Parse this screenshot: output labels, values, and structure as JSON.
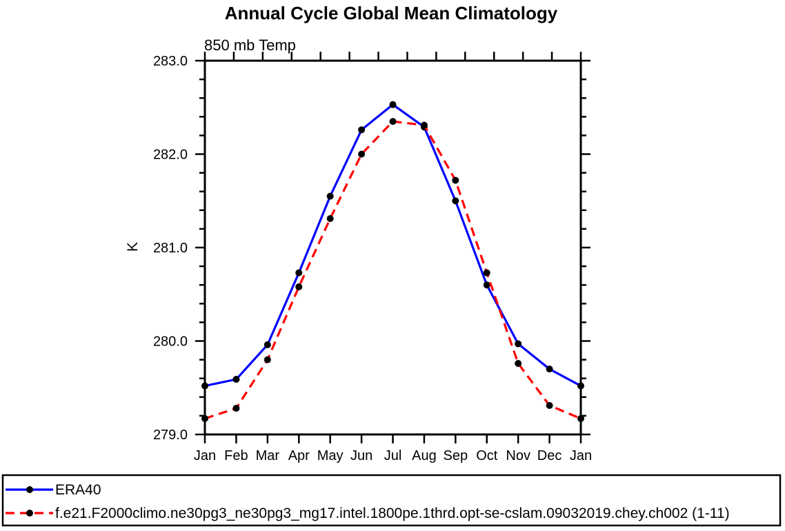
{
  "page": {
    "background": "#ffffff",
    "foreground": "#000000"
  },
  "chart_data": {
    "type": "line",
    "title": "Annual Cycle Global Mean Climatology",
    "subtitle": "850 mb Temp",
    "xlabel": "",
    "ylabel": "K",
    "categories": [
      "Jan",
      "Feb",
      "Mar",
      "Apr",
      "May",
      "Jun",
      "Jul",
      "Aug",
      "Sep",
      "Oct",
      "Nov",
      "Dec",
      "Jan"
    ],
    "ylim": [
      279.0,
      283.0
    ],
    "ytick_labels": [
      "279.0",
      "280.0",
      "281.0",
      "282.0",
      "283.0"
    ],
    "ytick_major_step": 1.0,
    "ytick_minor_step": 0.2,
    "grid": false,
    "axis_color": "#000000",
    "marker_color": "#000000",
    "legend_position": "bottom-outside-full-width",
    "series": [
      {
        "name": "ERA40",
        "color": "#0000ff",
        "line_style": "solid",
        "marker": "filled-circle",
        "values": [
          279.52,
          279.59,
          279.96,
          280.73,
          281.55,
          282.26,
          282.53,
          282.29,
          281.5,
          280.6,
          279.97,
          279.7,
          279.52
        ]
      },
      {
        "name": "f.e21.F2000climo.ne30pg3_ne30pg3_mg17.intel.1800pe.1thrd.opt-se-cslam.09032019.chey.ch002 (1-11)",
        "color": "#ff0000",
        "line_style": "dashed",
        "marker": "filled-circle",
        "values": [
          279.17,
          279.28,
          279.8,
          280.58,
          281.31,
          282.0,
          282.35,
          282.31,
          281.72,
          280.73,
          279.76,
          279.31,
          279.17
        ]
      }
    ]
  }
}
